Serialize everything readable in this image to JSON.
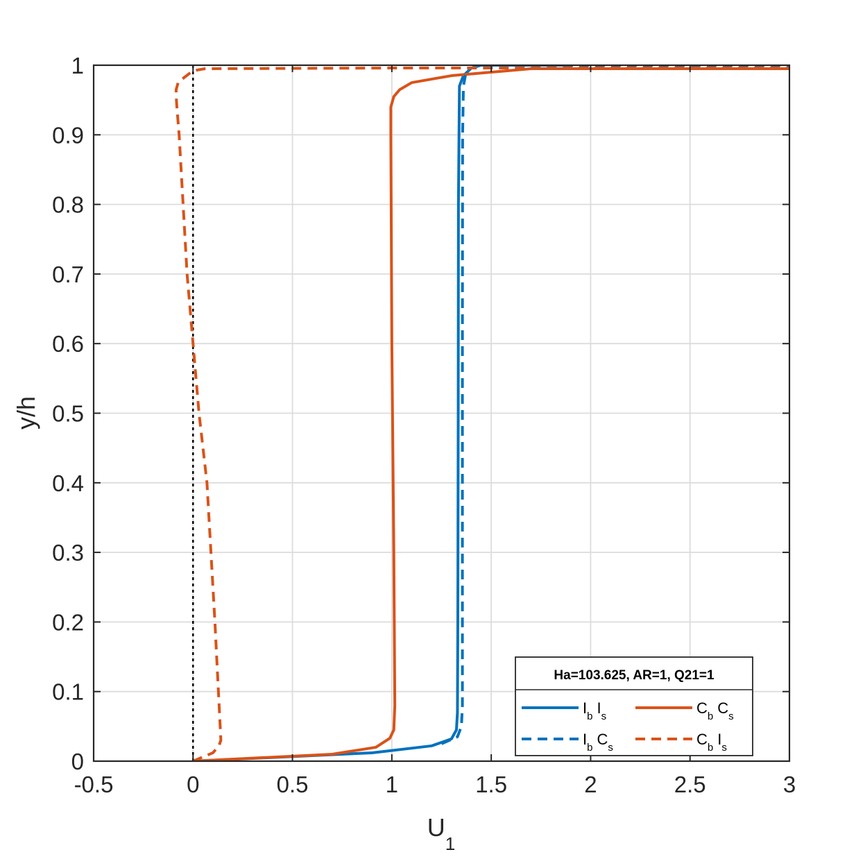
{
  "chart_data": {
    "type": "line",
    "title": "",
    "xlabel": "U",
    "xlabel_subscript": "1",
    "ylabel": "y/h",
    "xlim": [
      -0.5,
      3
    ],
    "ylim": [
      0,
      1
    ],
    "xticks": [
      -0.5,
      0,
      0.5,
      1,
      1.5,
      2,
      2.5,
      3
    ],
    "xtick_labels": [
      "-0.5",
      "0",
      "0.5",
      "1",
      "1.5",
      "2",
      "2.5",
      "3"
    ],
    "yticks": [
      0,
      0.1,
      0.2,
      0.3,
      0.4,
      0.5,
      0.6,
      0.7,
      0.8,
      0.9,
      1
    ],
    "ytick_labels": [
      "0",
      "0.1",
      "0.2",
      "0.3",
      "0.4",
      "0.5",
      "0.6",
      "0.7",
      "0.8",
      "0.9",
      "1"
    ],
    "grid": true,
    "legend_position": "bottom-right",
    "legend_title": "Ha=103.625, AR=1, Q21=1",
    "reference_line": {
      "x": 0,
      "style": "dotted",
      "color": "#000000"
    },
    "series": [
      {
        "key": "IbIs",
        "name": "I_b I_s",
        "label_main": [
          "I",
          "I"
        ],
        "label_sub": [
          "b",
          "s"
        ],
        "color": "#0072BD",
        "dash": "solid",
        "x": [
          0,
          0.9,
          1.2,
          1.3,
          1.325,
          1.33,
          1.332,
          1.334,
          1.335,
          1.34,
          1.36,
          1.4,
          1.45,
          1.6,
          1.88
        ],
        "y": [
          0,
          0.012,
          0.022,
          0.032,
          0.045,
          0.07,
          0.2,
          0.5,
          0.8,
          0.97,
          0.985,
          0.996,
          1.0,
          1.0,
          1.0
        ]
      },
      {
        "key": "CbCs",
        "name": "C_b C_s",
        "label_main": [
          "C",
          "C"
        ],
        "label_sub": [
          "b",
          "s"
        ],
        "color": "#D95319",
        "dash": "solid",
        "x": [
          0,
          0.7,
          0.92,
          0.99,
          1.01,
          1.015,
          1.01,
          1.0,
          0.995,
          0.995,
          1.01,
          1.04,
          1.1,
          1.3,
          1.7,
          3.0
        ],
        "y": [
          0,
          0.01,
          0.02,
          0.033,
          0.045,
          0.08,
          0.3,
          0.6,
          0.9,
          0.94,
          0.955,
          0.965,
          0.975,
          0.985,
          0.995,
          0.995
        ]
      },
      {
        "key": "IbCs",
        "name": "I_b C_s",
        "label_main": [
          "I",
          "C"
        ],
        "label_sub": [
          "b",
          "s"
        ],
        "color": "#0072BD",
        "dash": "dashed",
        "x": [
          1.25,
          1.33,
          1.35,
          1.355,
          1.355,
          1.355,
          1.356,
          1.36,
          1.37,
          1.39,
          1.45,
          1.7,
          2.0,
          3.0
        ],
        "y": [
          0.025,
          0.035,
          0.05,
          0.08,
          0.3,
          0.6,
          0.9,
          0.97,
          0.985,
          0.995,
          1.0,
          1.0,
          1.0,
          1.0
        ]
      },
      {
        "key": "CbIs",
        "name": "C_b I_s",
        "label_main": [
          "C",
          "I"
        ],
        "label_sub": [
          "b",
          "s"
        ],
        "color": "#D95319",
        "dash": "dashed",
        "x": [
          0.0,
          0.1,
          0.13,
          0.14,
          0.11,
          0.07,
          0.03,
          0.0,
          -0.03,
          -0.05,
          -0.07,
          -0.08,
          -0.085,
          -0.085,
          -0.075,
          -0.055,
          -0.01,
          0.02,
          0.06,
          1.0,
          2.0,
          3.0
        ],
        "y": [
          0,
          0.012,
          0.022,
          0.03,
          0.2,
          0.4,
          0.5,
          0.6,
          0.7,
          0.8,
          0.9,
          0.935,
          0.955,
          0.965,
          0.975,
          0.98,
          0.99,
          0.993,
          0.995,
          0.996,
          0.996,
          0.996
        ]
      }
    ]
  }
}
